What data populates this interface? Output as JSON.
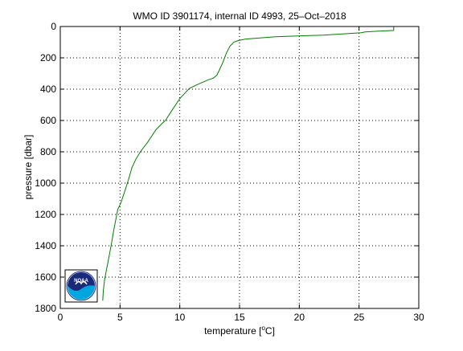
{
  "chart_data": {
    "type": "line",
    "title": "WMO ID 3901174, internal ID 4993, 25–Oct–2018",
    "xlabel_prefix": "temperature [",
    "xlabel_superscript": "o",
    "xlabel_suffix": "C]",
    "ylabel": "pressure [dbar]",
    "xlim": [
      0,
      30
    ],
    "ylim": [
      1800,
      0
    ],
    "y_reversed": true,
    "grid": true,
    "grid_style": "dotted",
    "xticks": [
      0,
      5,
      10,
      15,
      20,
      25,
      30
    ],
    "yticks": [
      0,
      200,
      400,
      600,
      800,
      1000,
      1200,
      1400,
      1600,
      1800
    ],
    "series": [
      {
        "color": "#007f00",
        "x": [
          27.9,
          27.9,
          26.5,
          25.5,
          25.2,
          22,
          18,
          15.5,
          14.9,
          14.5,
          14.4,
          14.2,
          13.9,
          13.6,
          13.3,
          13.1,
          12.8,
          12.4,
          11.5,
          10.8,
          10.0,
          9.3,
          8.8,
          8.5,
          8.0,
          7.3,
          6.7,
          6.3,
          6.0,
          5.7,
          5.4,
          5.1,
          4.8,
          4.6,
          4.45,
          4.3,
          4.15,
          4.0,
          3.85,
          3.7,
          3.6,
          3.55
        ],
        "y": [
          0,
          25,
          30,
          35,
          40,
          55,
          65,
          80,
          90,
          100,
          110,
          125,
          170,
          230,
          280,
          310,
          330,
          340,
          370,
          395,
          460,
          540,
          600,
          620,
          660,
          740,
          800,
          850,
          900,
          980,
          1050,
          1120,
          1170,
          1250,
          1310,
          1380,
          1440,
          1500,
          1560,
          1620,
          1690,
          1750
        ]
      }
    ]
  },
  "logo": {
    "text": "NOAA",
    "colors": {
      "ring": "#ffffff",
      "sky": "#1a2a7a",
      "wave": "#00a6e0",
      "border": "#000000"
    }
  }
}
